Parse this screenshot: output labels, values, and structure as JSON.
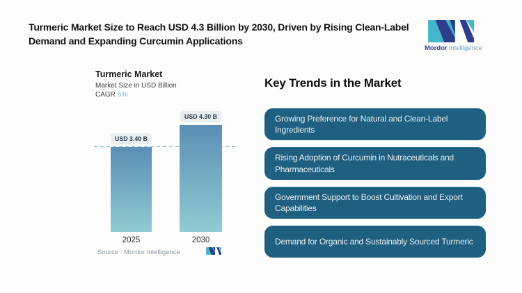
{
  "header": {
    "title": "Turmeric Market Size to Reach USD 4.3 Billion by 2030, Driven by Rising Clean-Label\nDemand and Expanding Curcumin Applications",
    "logo": {
      "brand_bold": "Mordor",
      "brand_light": "Intelligence"
    }
  },
  "chart_data": {
    "type": "bar",
    "title": "Turmeric Market",
    "subtitle": "Market Size in USD Billion",
    "cagr_label": "CAGR",
    "cagr_value": "5%",
    "categories": [
      "2025",
      "2030"
    ],
    "values": [
      3.4,
      4.3
    ],
    "value_labels": [
      "USD 3.40 B",
      "USD 4.30 B"
    ],
    "ylim": [
      0,
      4.3
    ],
    "reference_line": 3.4,
    "grid": false,
    "legend": false,
    "source_label": "Source :  Mordor Intelligence"
  },
  "trends": {
    "heading": "Key Trends in the Market",
    "items": [
      {
        "label": "Growing Preference for Natural and Clean-Label\nIngredients"
      },
      {
        "label": "Rising Adoption of Curcumin in Nutraceuticals and\nPharmaceuticals"
      },
      {
        "label": "Government Support to Boost Cultivation and Export\nCapabilities"
      },
      {
        "label": "Demand for Organic and Sustainably Sourced Turmeric"
      }
    ]
  },
  "colors": {
    "accent_teal": "#44b5cb",
    "brand_navy": "#2c3e8c",
    "trend_box": "#1f5f80",
    "trend_text": "#e7eff3",
    "bar_top": "#5a8eb5",
    "bar_bottom": "#91cbd2",
    "pill_bg": "#e8eef1",
    "pill_text": "#2c3e50",
    "dash": "#a5c9db",
    "cagr_value": "#7fb9da"
  }
}
